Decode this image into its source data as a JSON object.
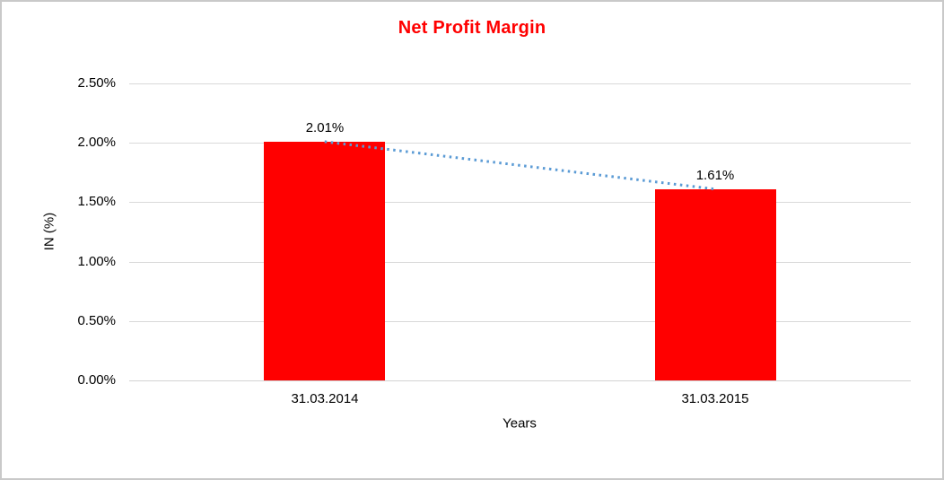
{
  "colors": {
    "bar": "#ff0000",
    "title": "#ff0000",
    "trendline": "#5b9bd5",
    "gridline": "#d9d9d9",
    "axis_line": "#d3d3d3",
    "text": "#000000",
    "border": "#c9c9c9",
    "background": "#ffffff"
  },
  "chart_data": {
    "type": "bar",
    "title": "Net Profit Margin",
    "categories": [
      "31.03.2014",
      "31.03.2015"
    ],
    "values": [
      2.01,
      1.61
    ],
    "data_labels": [
      "2.01%",
      "1.61%"
    ],
    "xlabel": "Years",
    "ylabel": "IN (%)",
    "ylim": [
      0,
      2.5
    ],
    "ytick_interval": 0.5,
    "yticks": [
      {
        "value": 0.0,
        "label": "0.00%"
      },
      {
        "value": 0.5,
        "label": "0.50%"
      },
      {
        "value": 1.0,
        "label": "1.00%"
      },
      {
        "value": 1.5,
        "label": "1.50%"
      },
      {
        "value": 2.0,
        "label": "2.00%"
      },
      {
        "value": 2.5,
        "label": "2.50%"
      }
    ],
    "grid": true,
    "legend": false,
    "trendline": {
      "style": "dotted",
      "color": "#5b9bd5",
      "points": [
        2.01,
        1.61
      ]
    }
  }
}
